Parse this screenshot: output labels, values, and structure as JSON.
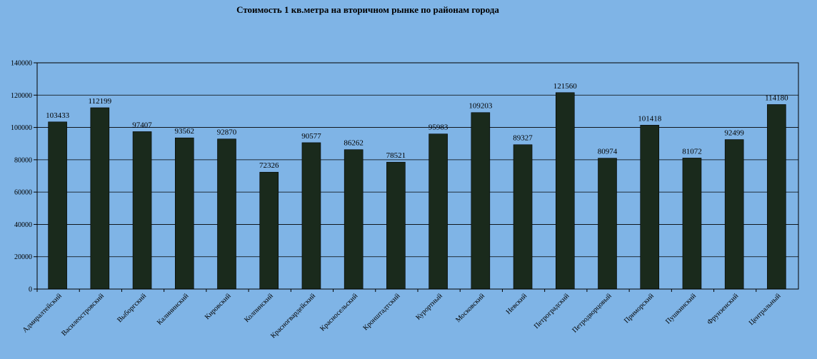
{
  "chart_data": {
    "type": "bar",
    "title": "Стоимость 1 кв.метра на вторичном  рынке  по районам  города",
    "xlabel": "",
    "ylabel": "",
    "ylim": [
      0,
      140000
    ],
    "yticks": [
      0,
      20000,
      40000,
      60000,
      80000,
      100000,
      120000,
      140000
    ],
    "ytick_labels": [
      "0",
      "20000",
      "40000",
      "60000",
      "80000",
      "100000",
      "120000",
      "140000"
    ],
    "grid": true,
    "legend": "none",
    "bar_color": "#1a2a1c",
    "categories": [
      "Адмиралтейский",
      "Василеостровский",
      "Выборгский",
      "Калининский",
      "Кировский",
      "Колпинский",
      "Красногвардейский",
      "Красносельский",
      "Кронштадтский",
      "Курортный",
      "Московский",
      "Невский",
      "Петроградский",
      "Петродворцовый",
      "Приморский",
      "Пушкинский",
      "Фрунзенский",
      "Центральный"
    ],
    "values": [
      103433,
      112199,
      97407,
      93562,
      92870,
      72326,
      90577,
      86262,
      78521,
      95983,
      109203,
      89327,
      121560,
      80974,
      101418,
      81072,
      92499,
      114180
    ],
    "value_labels": [
      "103433",
      "112199",
      "97407",
      "93562",
      "92870",
      "72326",
      "90577",
      "86262",
      "78521",
      "95983",
      "109203",
      "89327",
      "121560",
      "80974",
      "101418",
      "81072",
      "92499",
      "114180"
    ]
  }
}
